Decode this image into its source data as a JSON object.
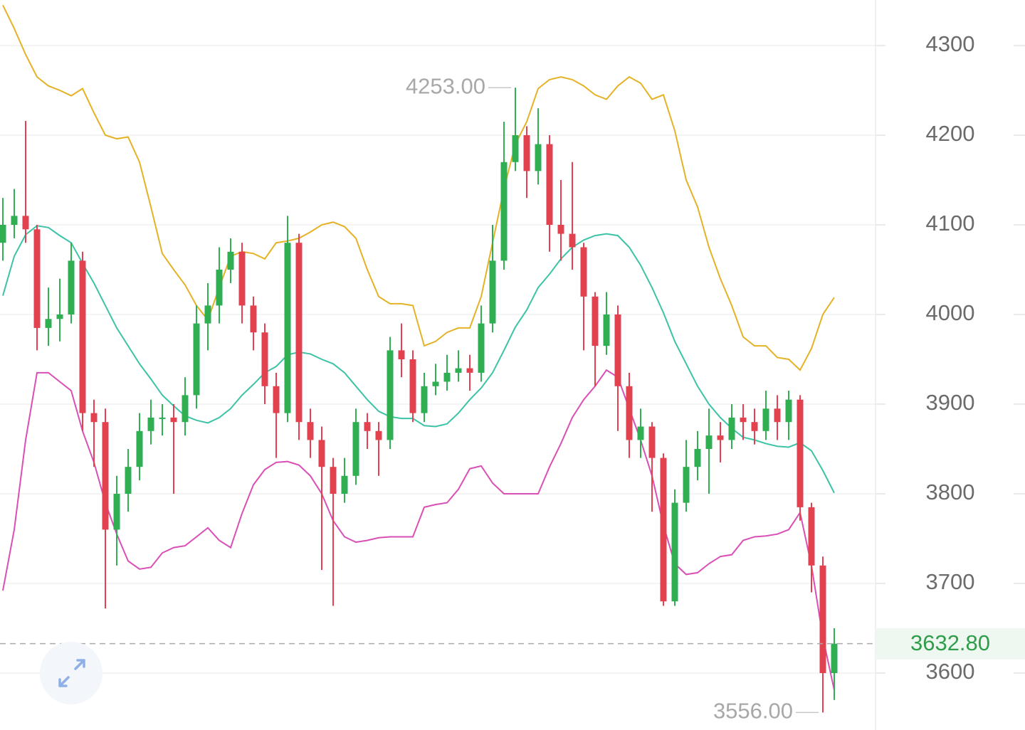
{
  "chart_data": {
    "type": "candlestick",
    "ylim": [
      3536.5,
      4350.8
    ],
    "yticks": [
      3600,
      3700,
      3800,
      3900,
      4000,
      4100,
      4200,
      4300
    ],
    "grid": true,
    "up_color": "#2fae52",
    "down_color": "#e2414f",
    "open": [
      4080,
      4100,
      4110,
      4095,
      3985,
      3995,
      4000,
      4060,
      3890,
      3880,
      3760,
      3800,
      3830,
      3870,
      3885,
      3885,
      3880,
      3910,
      3990,
      4010,
      4050,
      4070,
      4010,
      3980,
      3920,
      3890,
      4080,
      3880,
      3860,
      3830,
      3800,
      3820,
      3880,
      3870,
      3860,
      3960,
      3950,
      3890,
      3920,
      3925,
      3935,
      3940,
      3935,
      3990,
      4060,
      4170,
      4200,
      4160,
      4190,
      4100,
      4090,
      4075,
      4020,
      3965,
      4000,
      3920,
      3860,
      3875,
      3840,
      3680,
      3790,
      3830,
      3850,
      3865,
      3860,
      3885,
      3880,
      3870,
      3895,
      3880,
      3905,
      3785,
      3720,
      3600
    ],
    "high": [
      4130,
      4140,
      4216,
      4100,
      4030,
      4040,
      4080,
      4070,
      3905,
      3895,
      3820,
      3850,
      3890,
      3905,
      3900,
      3900,
      3930,
      4010,
      4035,
      4075,
      4085,
      4080,
      4020,
      3990,
      3935,
      4110,
      4090,
      3895,
      3875,
      3840,
      3840,
      3895,
      3890,
      3880,
      3975,
      3990,
      3960,
      3935,
      3945,
      3955,
      3960,
      3955,
      4010,
      4100,
      4215,
      4253,
      4210,
      4230,
      4200,
      4150,
      4170,
      4080,
      4025,
      4025,
      4010,
      3935,
      3895,
      3880,
      3845,
      3805,
      3860,
      3870,
      3895,
      3880,
      3900,
      3900,
      3895,
      3915,
      3910,
      3915,
      3910,
      3790,
      3730,
      3650
    ],
    "low": [
      4060,
      4085,
      4080,
      3960,
      3965,
      3970,
      3990,
      3870,
      3830,
      3672,
      3720,
      3780,
      3815,
      3855,
      3865,
      3800,
      3865,
      3895,
      3960,
      3990,
      4035,
      3990,
      3960,
      3900,
      3840,
      3880,
      3860,
      3840,
      3715,
      3675,
      3790,
      3810,
      3850,
      3820,
      3850,
      3930,
      3880,
      3880,
      3910,
      3915,
      3925,
      3915,
      3925,
      3980,
      4050,
      4160,
      4130,
      4145,
      4070,
      4060,
      4050,
      3960,
      3920,
      3955,
      3870,
      3840,
      3840,
      3780,
      3675,
      3675,
      3780,
      3815,
      3800,
      3835,
      3850,
      3860,
      3855,
      3860,
      3860,
      3860,
      3770,
      3690,
      3556,
      3570
    ],
    "close": [
      4100,
      4110,
      4095,
      3985,
      3995,
      4000,
      4060,
      3890,
      3880,
      3760,
      3800,
      3830,
      3870,
      3885,
      3885,
      3880,
      3910,
      3990,
      4010,
      4050,
      4070,
      4010,
      3980,
      3920,
      3890,
      4080,
      3880,
      3860,
      3830,
      3800,
      3820,
      3880,
      3870,
      3860,
      3960,
      3950,
      3890,
      3920,
      3925,
      3935,
      3940,
      3935,
      3990,
      4060,
      4170,
      4200,
      4160,
      4190,
      4100,
      4090,
      4075,
      4020,
      3965,
      4000,
      3920,
      3860,
      3875,
      3840,
      3680,
      3790,
      3830,
      3850,
      3865,
      3860,
      3885,
      3880,
      3870,
      3895,
      3880,
      3905,
      3785,
      3720,
      3600,
      3632.8
    ],
    "bands": [
      {
        "color": "#e5b226",
        "values": [
          4345,
          4319,
          4290,
          4265,
          4255,
          4250,
          4244,
          4252,
          4225,
          4200,
          4196,
          4198,
          4170,
          4120,
          4068,
          4050,
          4033,
          4010,
          3994,
          4030,
          4065,
          4070,
          4068,
          4062,
          4080,
          4082,
          4085,
          4092,
          4100,
          4103,
          4098,
          4085,
          4050,
          4020,
          4012,
          4012,
          4010,
          3965,
          3970,
          3980,
          3985,
          3985,
          4020,
          4080,
          4140,
          4190,
          4215,
          4252,
          4262,
          4265,
          4262,
          4255,
          4245,
          4240,
          4255,
          4265,
          4258,
          4240,
          4245,
          4205,
          4150,
          4120,
          4075,
          4040,
          4010,
          3975,
          3965,
          3965,
          3952,
          3950,
          3938,
          3962,
          4000,
          4019
        ]
      },
      {
        "color": "#3cc3a6",
        "values": [
          4021,
          4065,
          4089,
          4099,
          4097,
          4088,
          4080,
          4057,
          4035,
          4010,
          3985,
          3965,
          3945,
          3928,
          3910,
          3898,
          3887,
          3882,
          3879,
          3885,
          3895,
          3910,
          3922,
          3935,
          3942,
          3955,
          3958,
          3956,
          3950,
          3945,
          3935,
          3920,
          3905,
          3892,
          3886,
          3884,
          3884,
          3876,
          3875,
          3878,
          3890,
          3905,
          3918,
          3935,
          3960,
          3986,
          4005,
          4030,
          4045,
          4062,
          4075,
          4083,
          4088,
          4090,
          4088,
          4075,
          4055,
          4030,
          4002,
          3970,
          3945,
          3920,
          3900,
          3885,
          3873,
          3863,
          3860,
          3856,
          3853,
          3852,
          3857,
          3848,
          3826,
          3801
        ]
      },
      {
        "color": "#d94fb6",
        "values": [
          3692,
          3760,
          3860,
          3935,
          3935,
          3925,
          3915,
          3870,
          3835,
          3790,
          3755,
          3725,
          3716,
          3718,
          3734,
          3740,
          3742,
          3752,
          3762,
          3748,
          3740,
          3778,
          3810,
          3827,
          3835,
          3836,
          3832,
          3820,
          3800,
          3770,
          3752,
          3746,
          3748,
          3751,
          3752,
          3752,
          3752,
          3785,
          3788,
          3790,
          3805,
          3828,
          3831,
          3812,
          3800,
          3800,
          3800,
          3800,
          3830,
          3856,
          3885,
          3905,
          3920,
          3938,
          3930,
          3895,
          3860,
          3820,
          3765,
          3722,
          3710,
          3712,
          3722,
          3730,
          3732,
          3748,
          3752,
          3753,
          3755,
          3760,
          3779,
          3720,
          3640,
          3581
        ]
      }
    ],
    "annotations": [
      {
        "value": 4253,
        "label": "4253.00"
      },
      {
        "value": 3556,
        "label": "3556.00"
      }
    ],
    "last_price": {
      "value": 3632.8,
      "label": "3632.80"
    }
  }
}
